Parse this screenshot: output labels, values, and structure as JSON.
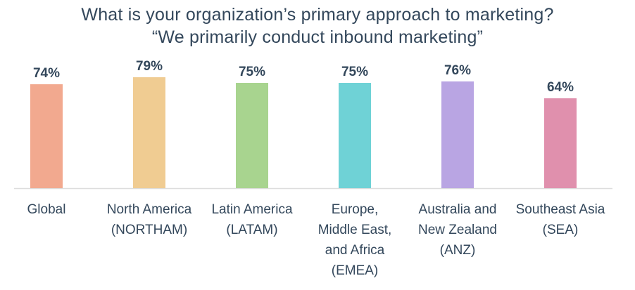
{
  "title": "What is your organization’s primary approach to marketing?",
  "subtitle": "“We primarily conduct inbound marketing”",
  "chart_data": {
    "type": "bar",
    "title": "What is your organization’s primary approach to marketing?",
    "subtitle": "“We primarily conduct inbound marketing”",
    "categories": [
      [
        "Global"
      ],
      [
        "North America",
        "(NORTHAM)"
      ],
      [
        "Latin America",
        "(LATAM)"
      ],
      [
        "Europe,",
        "Middle East,",
        "and Africa",
        "(EMEA)"
      ],
      [
        "Australia and",
        "New Zealand",
        "(ANZ)"
      ],
      [
        "Southeast Asia",
        "(SEA)"
      ]
    ],
    "values": [
      74,
      79,
      75,
      75,
      76,
      64
    ],
    "value_labels": [
      "74%",
      "79%",
      "75%",
      "75%",
      "76%",
      "64%"
    ],
    "colors": [
      "#f2a98f",
      "#f0cc92",
      "#a8d48f",
      "#6fd2d6",
      "#b9a5e3",
      "#e090ad"
    ],
    "ylim": [
      0,
      100
    ],
    "grid": false,
    "legend": "none",
    "baseline_color": "#dddddd",
    "label_color": "#33475b"
  }
}
